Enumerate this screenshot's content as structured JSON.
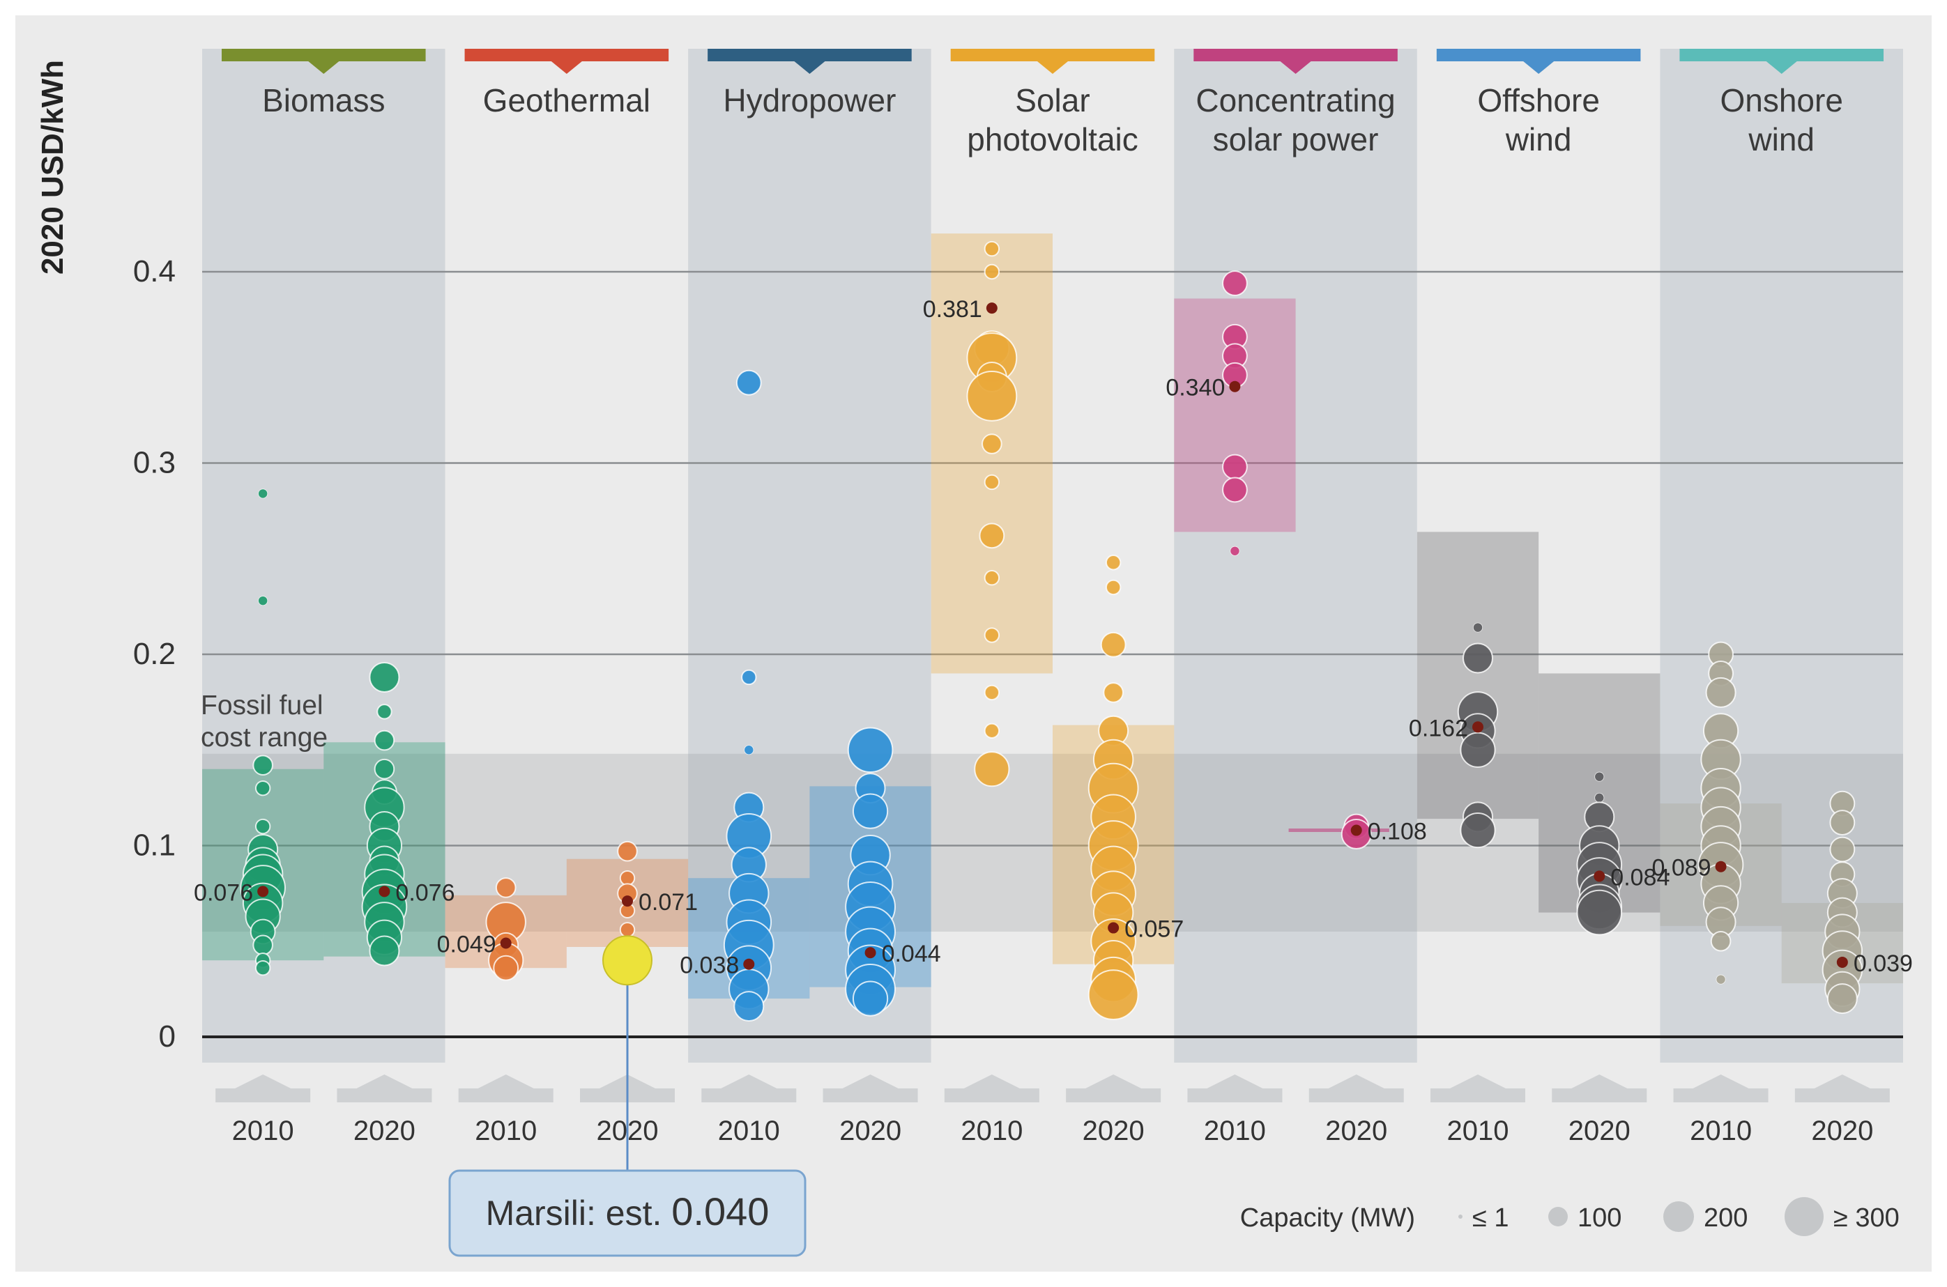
{
  "chart_data": {
    "type": "scatter",
    "ylabel": "2020 USD/kWh",
    "ylim": [
      0,
      0.45
    ],
    "yticks": [
      0,
      0.1,
      0.2,
      0.3,
      0.4
    ],
    "ytick_labels": [
      "0",
      "0.1",
      "0.2",
      "0.3",
      "0.4"
    ],
    "fossil_label": [
      "Fossil fuel",
      "cost range"
    ],
    "fossil_range": [
      0.055,
      0.148
    ],
    "years": [
      "2010",
      "2020"
    ],
    "technologies": [
      {
        "name": [
          "Biomass"
        ],
        "color": "#7a8f2e",
        "dot": "#1e9a6c",
        "range2010": [
          0.04,
          0.14
        ],
        "range2020": [
          0.042,
          0.154
        ],
        "wa2010": 0.076,
        "wa2020": 0.076,
        "label2010": "0.076",
        "label2020": "0.076",
        "pts2010": [
          [
            0.284,
            1
          ],
          [
            0.228,
            1
          ],
          [
            0.142,
            3
          ],
          [
            0.13,
            2
          ],
          [
            0.11,
            2
          ],
          [
            0.098,
            5
          ],
          [
            0.09,
            6
          ],
          [
            0.085,
            7
          ],
          [
            0.078,
            8
          ],
          [
            0.07,
            7
          ],
          [
            0.063,
            6
          ],
          [
            0.055,
            4
          ],
          [
            0.048,
            3
          ],
          [
            0.04,
            2
          ],
          [
            0.036,
            2
          ]
        ],
        "pts2020": [
          [
            0.188,
            5
          ],
          [
            0.17,
            2
          ],
          [
            0.155,
            3
          ],
          [
            0.14,
            3
          ],
          [
            0.128,
            4
          ],
          [
            0.12,
            7
          ],
          [
            0.11,
            5
          ],
          [
            0.1,
            6
          ],
          [
            0.092,
            5
          ],
          [
            0.085,
            7
          ],
          [
            0.076,
            8
          ],
          [
            0.068,
            8
          ],
          [
            0.06,
            7
          ],
          [
            0.052,
            6
          ],
          [
            0.045,
            5
          ]
        ]
      },
      {
        "name": [
          "Geothermal"
        ],
        "color": "#d34b35",
        "dot": "#e37b3a",
        "range2010": [
          0.036,
          0.074
        ],
        "range2020": [
          0.047,
          0.093
        ],
        "wa2010": 0.049,
        "wa2020": 0.071,
        "label2010": "0.049",
        "label2020": "0.071",
        "pts2010": [
          [
            0.078,
            3
          ],
          [
            0.06,
            7
          ],
          [
            0.048,
            4
          ],
          [
            0.04,
            6
          ],
          [
            0.036,
            4
          ]
        ],
        "pts2020": [
          [
            0.097,
            3
          ],
          [
            0.083,
            2
          ],
          [
            0.075,
            3
          ],
          [
            0.066,
            2
          ],
          [
            0.056,
            2
          ]
        ]
      },
      {
        "name": [
          "Hydropower"
        ],
        "color": "#2e5f82",
        "dot": "#2d8fd6",
        "range2010": [
          0.02,
          0.083
        ],
        "range2020": [
          0.026,
          0.131
        ],
        "wa2010": 0.038,
        "wa2020": 0.044,
        "label2010": "0.038",
        "label2020": "0.044",
        "pts2010": [
          [
            0.342,
            4
          ],
          [
            0.188,
            2
          ],
          [
            0.15,
            1
          ],
          [
            0.12,
            5
          ],
          [
            0.105,
            8
          ],
          [
            0.09,
            6
          ],
          [
            0.075,
            7
          ],
          [
            0.06,
            8
          ],
          [
            0.048,
            9
          ],
          [
            0.036,
            8
          ],
          [
            0.025,
            7
          ],
          [
            0.016,
            5
          ]
        ],
        "pts2020": [
          [
            0.15,
            8
          ],
          [
            0.13,
            5
          ],
          [
            0.118,
            6
          ],
          [
            0.095,
            7
          ],
          [
            0.08,
            8
          ],
          [
            0.068,
            9
          ],
          [
            0.055,
            9
          ],
          [
            0.045,
            8
          ],
          [
            0.035,
            9
          ],
          [
            0.025,
            9
          ],
          [
            0.02,
            6
          ]
        ]
      },
      {
        "name": [
          "Solar",
          "photovoltaic"
        ],
        "color": "#e8a62e",
        "dot": "#e9a83a",
        "range2010": [
          0.19,
          0.42
        ],
        "range2020": [
          0.038,
          0.163
        ],
        "wa2010": 0.381,
        "wa2020": 0.057,
        "label2010": "0.381",
        "label2020": "0.057",
        "pts2010": [
          [
            0.412,
            2
          ],
          [
            0.4,
            2
          ],
          [
            0.36,
            6
          ],
          [
            0.355,
            9
          ],
          [
            0.345,
            5
          ],
          [
            0.335,
            9
          ],
          [
            0.31,
            3
          ],
          [
            0.29,
            2
          ],
          [
            0.262,
            4
          ],
          [
            0.24,
            2
          ],
          [
            0.21,
            2
          ],
          [
            0.18,
            2
          ],
          [
            0.16,
            2
          ],
          [
            0.14,
            6
          ]
        ],
        "pts2020": [
          [
            0.248,
            2
          ],
          [
            0.235,
            2
          ],
          [
            0.205,
            4
          ],
          [
            0.18,
            3
          ],
          [
            0.16,
            5
          ],
          [
            0.145,
            7
          ],
          [
            0.13,
            9
          ],
          [
            0.115,
            8
          ],
          [
            0.1,
            9
          ],
          [
            0.088,
            8
          ],
          [
            0.075,
            8
          ],
          [
            0.065,
            7
          ],
          [
            0.05,
            8
          ],
          [
            0.04,
            7
          ],
          [
            0.03,
            8
          ],
          [
            0.022,
            9
          ]
        ]
      },
      {
        "name": [
          "Concentrating",
          "solar power"
        ],
        "color": "#c0427f",
        "dot": "#cc3f80",
        "range2010": [
          0.264,
          0.386
        ],
        "range2020": null,
        "wa2010": 0.34,
        "wa2020": 0.108,
        "label2010": "0.340",
        "label2020": "0.108",
        "pts2010": [
          [
            0.394,
            4
          ],
          [
            0.366,
            4
          ],
          [
            0.356,
            4
          ],
          [
            0.346,
            4
          ],
          [
            0.298,
            4
          ],
          [
            0.286,
            4
          ],
          [
            0.254,
            1
          ]
        ],
        "pts2020": [
          [
            0.11,
            4
          ],
          [
            0.106,
            5
          ]
        ]
      },
      {
        "name": [
          "Offshore",
          "wind"
        ],
        "color": "#4a90cc",
        "dot": "#5c5c60",
        "range2010": [
          0.114,
          0.264
        ],
        "range2020": [
          0.065,
          0.19
        ],
        "wa2010": 0.162,
        "wa2020": 0.084,
        "label2010": "0.162",
        "label2020": "0.084",
        "pts2010": [
          [
            0.214,
            1
          ],
          [
            0.198,
            5
          ],
          [
            0.17,
            7
          ],
          [
            0.16,
            6
          ],
          [
            0.15,
            6
          ],
          [
            0.115,
            5
          ],
          [
            0.108,
            6
          ]
        ],
        "pts2020": [
          [
            0.136,
            1
          ],
          [
            0.125,
            1
          ],
          [
            0.115,
            5
          ],
          [
            0.1,
            7
          ],
          [
            0.09,
            8
          ],
          [
            0.082,
            8
          ],
          [
            0.075,
            7
          ],
          [
            0.068,
            8
          ],
          [
            0.065,
            8
          ]
        ]
      },
      {
        "name": [
          "Onshore",
          "wind"
        ],
        "color": "#5bbcb8",
        "dot": "#a8a595",
        "range2010": [
          0.058,
          0.122
        ],
        "range2020": [
          0.028,
          0.07
        ],
        "wa2010": 0.089,
        "wa2020": 0.039,
        "label2010": "0.089",
        "label2020": "0.039",
        "pts2010": [
          [
            0.2,
            4
          ],
          [
            0.19,
            4
          ],
          [
            0.18,
            5
          ],
          [
            0.16,
            6
          ],
          [
            0.145,
            7
          ],
          [
            0.13,
            7
          ],
          [
            0.12,
            7
          ],
          [
            0.11,
            7
          ],
          [
            0.1,
            7
          ],
          [
            0.09,
            8
          ],
          [
            0.08,
            7
          ],
          [
            0.07,
            6
          ],
          [
            0.06,
            5
          ],
          [
            0.05,
            3
          ],
          [
            0.03,
            1
          ]
        ],
        "pts2020": [
          [
            0.122,
            4
          ],
          [
            0.112,
            4
          ],
          [
            0.098,
            4
          ],
          [
            0.085,
            4
          ],
          [
            0.075,
            5
          ],
          [
            0.065,
            5
          ],
          [
            0.055,
            6
          ],
          [
            0.045,
            7
          ],
          [
            0.035,
            7
          ],
          [
            0.025,
            6
          ],
          [
            0.02,
            5
          ]
        ]
      }
    ],
    "highlight": {
      "category": "Geothermal",
      "year": "2020",
      "value": 0.04,
      "color": "#ece23a",
      "label_prefix": "Marsili: est.",
      "label_value": "0.040"
    },
    "legend": {
      "title": "Capacity (MW)",
      "entries": [
        "≤ 1",
        "100",
        "200",
        "≥ 300"
      ]
    }
  }
}
